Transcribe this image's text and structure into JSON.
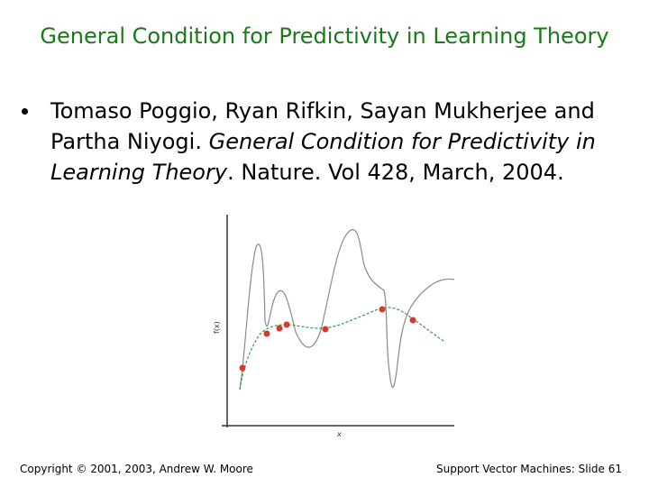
{
  "slide": {
    "title": "General Condition for Predictivity in Learning Theory",
    "citation": {
      "authors": "Tomaso Poggio, Ryan Rifkin, Sayan Mukherjee and Partha Niyogi.",
      "paper_title": "General Condition for Predictivity in Learning Theory",
      "venue": ". Nature. Vol 428, March, 2004."
    },
    "figure": {
      "ylabel": "f(x)",
      "xlabel": "x"
    },
    "footer": {
      "copyright": "Copyright © 2001, 2003, Andrew W. Moore",
      "slide_label": "Support Vector Machines: Slide 61"
    }
  },
  "colors": {
    "title": "#1a7a1a",
    "smooth_fit": "#2e9e3e",
    "overfit_curve": "#8a8a8a",
    "points": "#d43a2e"
  }
}
